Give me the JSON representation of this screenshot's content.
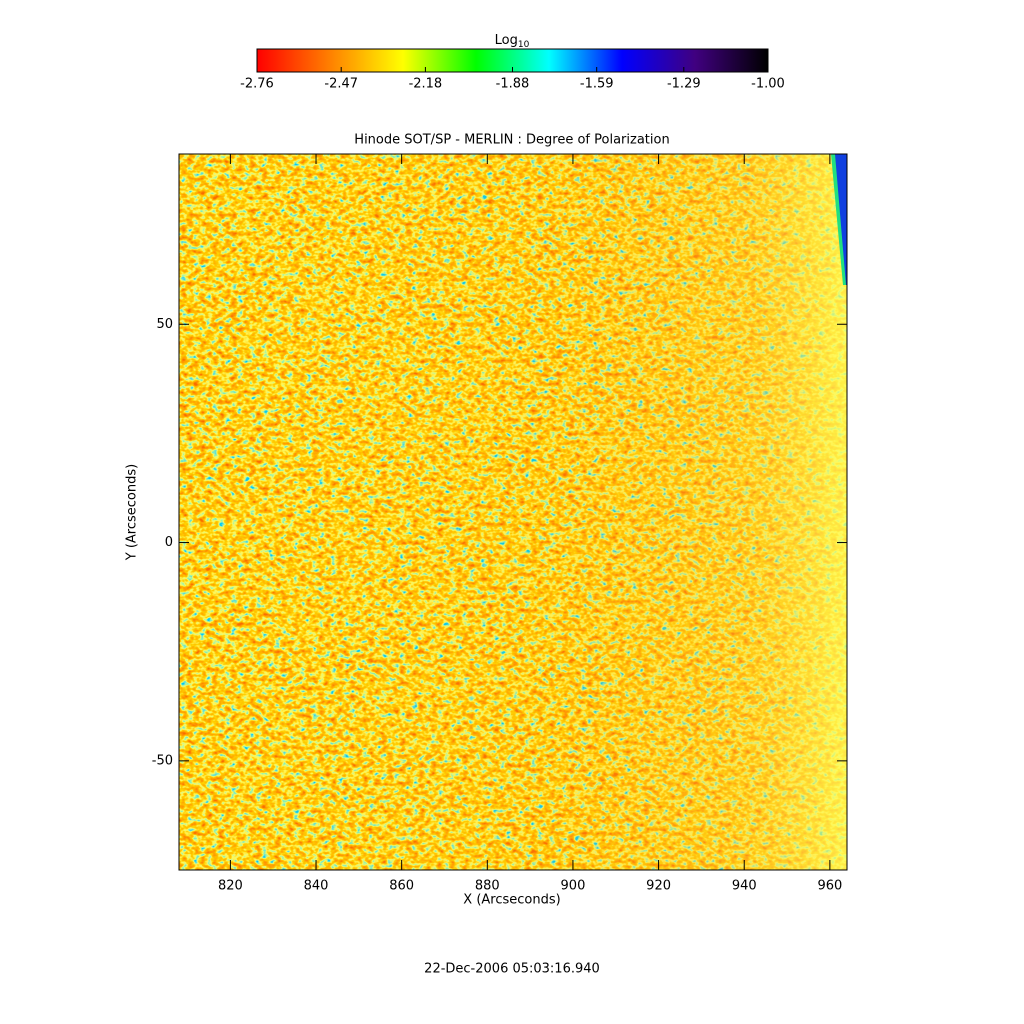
{
  "chart_data": {
    "type": "image",
    "title": "Hinode SOT/SP - MERLIN : Degree of Polarization",
    "x_label": "X (Arcseconds)",
    "y_label": "Y (Arcseconds)",
    "xlim": [
      808,
      964
    ],
    "xticks": [
      820,
      840,
      860,
      880,
      900,
      920,
      940,
      960
    ],
    "ylim": [
      -75,
      89
    ],
    "yticks": [
      -50,
      0,
      50
    ],
    "colorbar": {
      "title": "Log",
      "title_subscript": "10",
      "lim": [
        -2.76,
        -1.0
      ],
      "ticks": [
        -2.76,
        -2.47,
        -2.18,
        -1.88,
        -1.59,
        -1.29,
        {
          "value": -1.0,
          "label": "-1.00"
        }
      ],
      "colors": [
        "#ff0000",
        "#ff8000",
        "#ffff00",
        "#00ff00",
        "#00ffff",
        "#0000ff",
        "#400080",
        "#000000"
      ]
    },
    "annotation": "22-Dec-2006 05:03:16.940"
  }
}
